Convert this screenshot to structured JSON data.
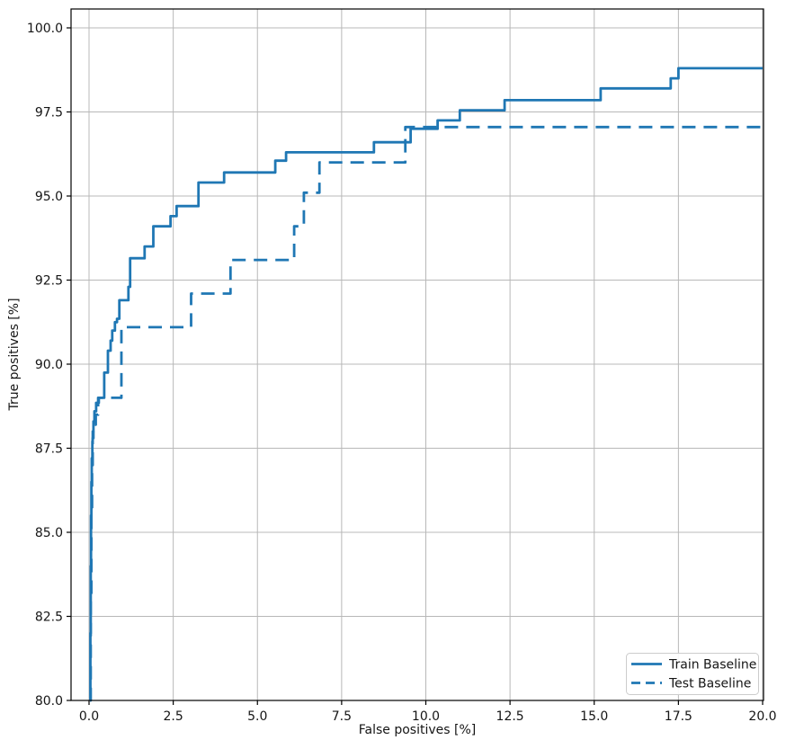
{
  "figure": {
    "background": "#ffffff",
    "accent_blue": "#1f77b4",
    "grid_color": "#b8b8b8",
    "spine_color": "#000000",
    "text_color": "#151515"
  },
  "chart_data": {
    "type": "line",
    "subtype": "step-roc-curve",
    "title": "",
    "xlabel": "False positives [%]",
    "ylabel": "True positives [%]",
    "xlim": [
      -0.53,
      20.03
    ],
    "ylim": [
      80.0,
      100.56
    ],
    "grid": true,
    "legend_position": "lower right",
    "xticks": [
      0.0,
      2.5,
      5.0,
      7.5,
      10.0,
      12.5,
      15.0,
      17.5,
      20.0
    ],
    "yticks": [
      80.0,
      82.5,
      85.0,
      87.5,
      90.0,
      92.5,
      95.0,
      97.5,
      100.0
    ],
    "xtick_labels": [
      "0.0",
      "2.5",
      "5.0",
      "7.5",
      "10.0",
      "12.5",
      "15.0",
      "17.5",
      "20.0"
    ],
    "ytick_labels": [
      "80.0",
      "82.5",
      "85.0",
      "87.5",
      "90.0",
      "92.5",
      "95.0",
      "97.5",
      "100.0"
    ],
    "series": [
      {
        "name": "Train Baseline",
        "style": "solid",
        "color": "#1f77b4",
        "step_points": [
          [
            0.03,
            80.0
          ],
          [
            0.04,
            82.0
          ],
          [
            0.05,
            84.0
          ],
          [
            0.06,
            85.5
          ],
          [
            0.07,
            86.5
          ],
          [
            0.08,
            87.2
          ],
          [
            0.1,
            87.7
          ],
          [
            0.11,
            88.0
          ],
          [
            0.13,
            88.3
          ],
          [
            0.16,
            88.6
          ],
          [
            0.21,
            88.85
          ],
          [
            0.29,
            89.0
          ],
          [
            0.45,
            89.75
          ],
          [
            0.56,
            90.4
          ],
          [
            0.64,
            90.7
          ],
          [
            0.69,
            91.0
          ],
          [
            0.77,
            91.25
          ],
          [
            0.83,
            91.35
          ],
          [
            0.9,
            91.9
          ],
          [
            1.17,
            92.3
          ],
          [
            1.22,
            93.15
          ],
          [
            1.65,
            93.5
          ],
          [
            1.91,
            94.1
          ],
          [
            2.42,
            94.4
          ],
          [
            2.6,
            94.7
          ],
          [
            3.25,
            95.4
          ],
          [
            4.01,
            95.7
          ],
          [
            5.53,
            96.05
          ],
          [
            5.85,
            96.3
          ],
          [
            8.46,
            96.6
          ],
          [
            9.55,
            97.0
          ],
          [
            10.35,
            97.25
          ],
          [
            11.01,
            97.55
          ],
          [
            12.34,
            97.85
          ],
          [
            15.19,
            98.2
          ],
          [
            17.27,
            98.5
          ],
          [
            17.5,
            98.8
          ],
          [
            20.0,
            98.8
          ]
        ]
      },
      {
        "name": "Test Baseline",
        "style": "dashed",
        "color": "#1f77b4",
        "step_points": [
          [
            0.03,
            80.0
          ],
          [
            0.05,
            83.0
          ],
          [
            0.07,
            85.5
          ],
          [
            0.09,
            87.0
          ],
          [
            0.11,
            87.8
          ],
          [
            0.13,
            88.2
          ],
          [
            0.2,
            88.5
          ],
          [
            0.27,
            89.0
          ],
          [
            0.96,
            91.1
          ],
          [
            3.03,
            92.1
          ],
          [
            4.2,
            93.1
          ],
          [
            6.09,
            94.1
          ],
          [
            6.38,
            95.1
          ],
          [
            6.84,
            96.0
          ],
          [
            9.39,
            97.05
          ],
          [
            20.0,
            97.05
          ]
        ]
      }
    ]
  }
}
